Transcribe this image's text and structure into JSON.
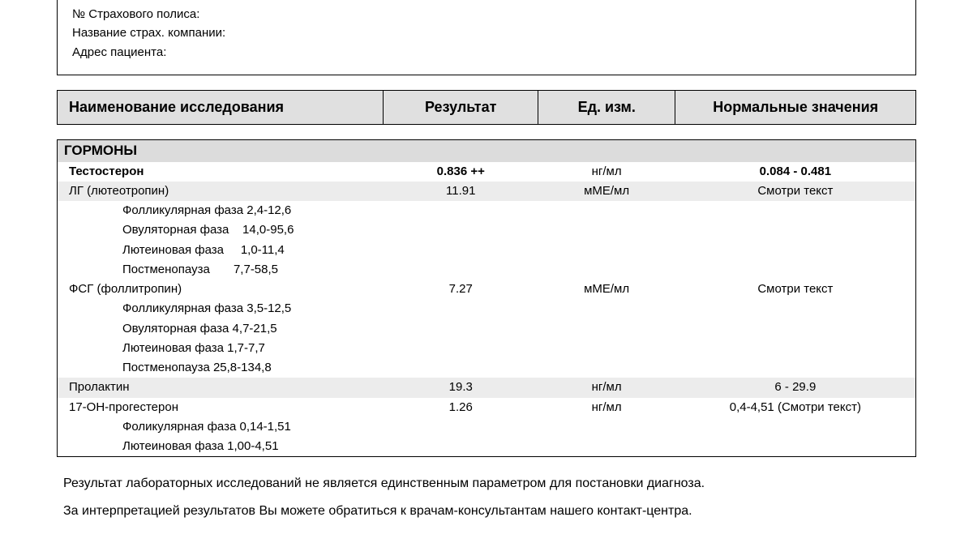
{
  "patient": {
    "insurance_no": "№ Страхового полиса:",
    "insurance_co": "Название страх. компании:",
    "address": "Адрес пациента:"
  },
  "headers": {
    "name": "Наименование исследования",
    "result": "Результат",
    "unit": "Ед. изм.",
    "ref": "Нормальные значения"
  },
  "section_title": "ГОРМОНЫ",
  "r": {
    "testo": {
      "name": "Тестостерон",
      "result": "0.836 ++",
      "unit": "нг/мл",
      "ref": "0.084 - 0.481"
    },
    "lh": {
      "name": "ЛГ (лютеотропин)",
      "result": "11.91",
      "unit": "мМЕ/мл",
      "ref": "Смотри текст"
    },
    "lh_p1": {
      "text": "Фолликулярная фаза 2,4-12,6"
    },
    "lh_p2": {
      "text": "Овуляторная фаза    14,0-95,6"
    },
    "lh_p3": {
      "text": "Лютеиновая фаза     1,0-11,4"
    },
    "lh_p4": {
      "text": "Постменопауза       7,7-58,5"
    },
    "fsh": {
      "name": "ФСГ (фоллитропин)",
      "result": "7.27",
      "unit": "мМЕ/мл",
      "ref": "Смотри текст"
    },
    "fsh_p1": {
      "text": "Фолликулярная фаза 3,5-12,5"
    },
    "fsh_p2": {
      "text": "Овуляторная фаза 4,7-21,5"
    },
    "fsh_p3": {
      "text": "Лютеиновая фаза 1,7-7,7"
    },
    "fsh_p4": {
      "text": "Постменопауза 25,8-134,8"
    },
    "prl": {
      "name": "Пролактин",
      "result": "19.3",
      "unit": "нг/мл",
      "ref": "6 - 29.9"
    },
    "ohp": {
      "name": "17-ОН-прогестерон",
      "result": "1.26",
      "unit": "нг/мл",
      "ref": "0,4-4,51 (Смотри текст)"
    },
    "ohp_p1": {
      "text": "Фоликулярная фаза 0,14-1,51"
    },
    "ohp_p2": {
      "text": "Лютеиновая фаза 1,00-4,51"
    }
  },
  "footer": {
    "l1": "Результат лабораторных исследований не является единственным параметром для постановки диагноза.",
    "l2": "За интерпретацией результатов Вы можете обратиться к врачам-консультантам нашего контакт-центра."
  },
  "style": {
    "header_bg": "#e0e0e0",
    "section_bg": "#dcdcdc",
    "shade_bg": "#ececec",
    "border": "#000000",
    "font_body": 15,
    "font_header": 18
  }
}
